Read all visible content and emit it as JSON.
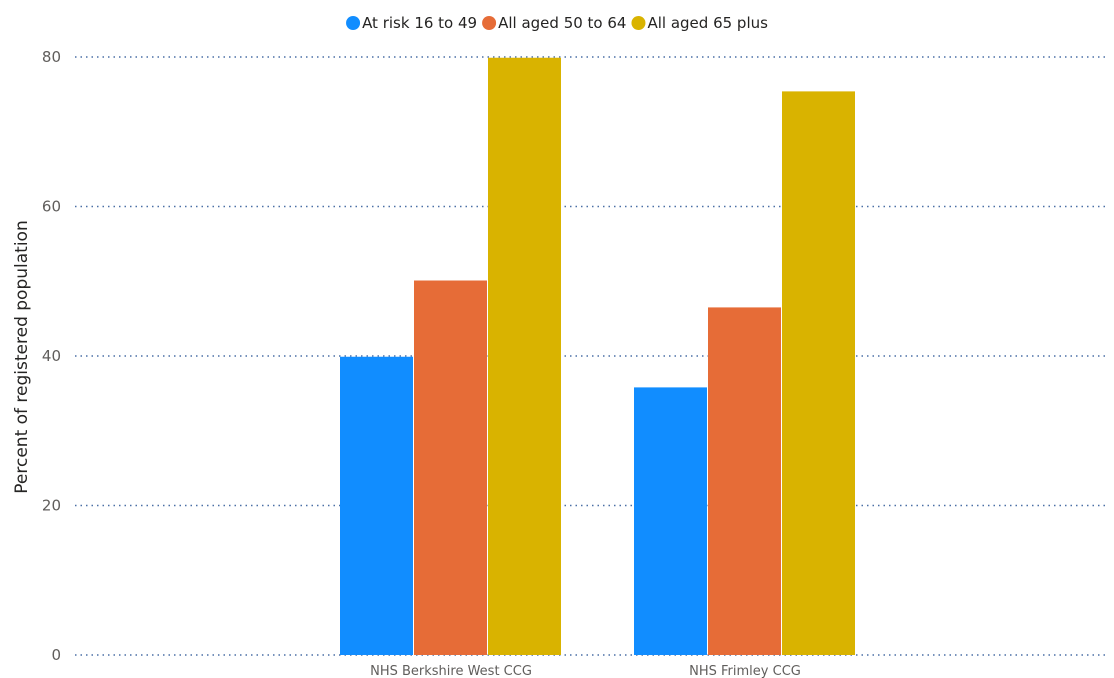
{
  "chart_data": {
    "type": "bar",
    "categories": [
      "NHS Berkshire West CCG",
      "NHS Frimley CCG"
    ],
    "series": [
      {
        "name": "At risk 16 to 49",
        "color": "#118dff",
        "values": [
          39.9,
          35.8
        ]
      },
      {
        "name": "All aged 50 to 64",
        "color": "#e66c37",
        "values": [
          50.1,
          46.5
        ]
      },
      {
        "name": "All aged 65 plus",
        "color": "#d9b300",
        "values": [
          79.9,
          75.4
        ]
      }
    ],
    "ylabel": "Percent of registered population",
    "ylim": [
      0,
      80
    ],
    "yticks": [
      0,
      20,
      40,
      60,
      80
    ],
    "grid": true,
    "legend_position": "top-center"
  }
}
